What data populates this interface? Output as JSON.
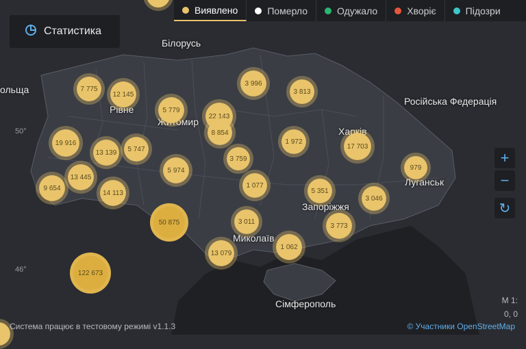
{
  "app": {
    "stat_button_label": "Статистика",
    "footer_text": "Система працює в тестовому режимі v1.1.3",
    "attribution": "© Участники OpenStreetMap",
    "scale_text": "M 1:",
    "coords_text": "0, 0"
  },
  "legend": [
    {
      "label": "Виявлено",
      "color": "#e9c46a",
      "active": true
    },
    {
      "label": "Померло",
      "color": "#ffffff",
      "active": false
    },
    {
      "label": "Одужало",
      "color": "#2bb673",
      "active": false
    },
    {
      "label": "Хворіє",
      "color": "#e5573d",
      "active": false
    },
    {
      "label": "Підозри",
      "color": "#3ec6c9",
      "active": false
    }
  ],
  "map_labels": {
    "belarus": "Білорусь",
    "russia": "Російська Федерація",
    "poland": "ольща",
    "rivne": "Рівне",
    "zhytomyr": "Житомир",
    "kharkiv": "Харків",
    "luhansk": "Луганськ",
    "zaporizhzhia": "Запоріжжя",
    "mykolaiv": "Миколаїв",
    "simferopol": "Сімферополь",
    "lat50": "50°",
    "lat46": "46°"
  },
  "clusters": {
    "c1": "7 775",
    "c2": "12 145",
    "c3": "5 779",
    "c4": "22 143",
    "c5": "3 996",
    "c6": "3 813",
    "c7": "8 854",
    "c8": "19 916",
    "c9": "13 139",
    "c10": "5 747",
    "c11": "5 974",
    "c12": "3 759",
    "c13": "1 972",
    "c14": "17 703",
    "c15": "979",
    "c16": "13 445",
    "c17": "9 654",
    "c18": "14 113",
    "c19": "1 077",
    "c20": "5 351",
    "c21": "3 046",
    "c22": "50 875",
    "c23": "3 011",
    "c24": "3 773",
    "c25": "1 062",
    "c26": "13 079",
    "c27": "122 673"
  },
  "controls": {
    "zoom_in": "+",
    "zoom_out": "−",
    "refresh": "↻"
  }
}
